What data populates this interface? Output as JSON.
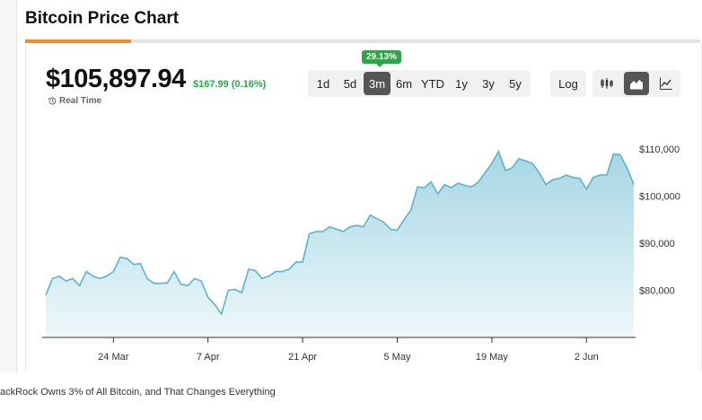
{
  "header": {
    "title": "Bitcoin Price Chart"
  },
  "price": {
    "value": "$105,897.94",
    "change": "$167.99 (0.16%)",
    "realtime_label": "Real Time"
  },
  "toolbar": {
    "ranges": [
      "1d",
      "5d",
      "3m",
      "6m",
      "YTD",
      "1y",
      "3y",
      "5y"
    ],
    "active_range": "3m",
    "performance_badge": "29.13%",
    "log_label": "Log",
    "chart_types": [
      "candlestick-icon",
      "area-icon",
      "line-icon"
    ],
    "active_chart_type": "area-icon"
  },
  "colors": {
    "accent": "#f08c2e",
    "positive": "#2ea64a",
    "line": "#5bb3cc",
    "fill_top": "#a6d6e4",
    "fill_bottom": "#eef8fb"
  },
  "chart_data": {
    "type": "area",
    "x_tick_labels": [
      "24 Mar",
      "7 Apr",
      "21 Apr",
      "5 May",
      "19 May",
      "2 Jun"
    ],
    "x_tick_index": [
      10,
      24,
      38,
      52,
      66,
      80
    ],
    "y_tick_labels": [
      "$80,000",
      "$90,000",
      "$100,000",
      "$110,000"
    ],
    "y_ticks": [
      80000,
      90000,
      100000,
      110000
    ],
    "ylim": [
      70000,
      115000
    ],
    "values": [
      79000,
      82500,
      83000,
      82000,
      82500,
      81000,
      84000,
      83000,
      82500,
      83000,
      84000,
      87000,
      86800,
      85500,
      85700,
      82500,
      81500,
      81500,
      81600,
      84000,
      81300,
      81000,
      82500,
      82000,
      78500,
      77000,
      75000,
      80000,
      80200,
      79500,
      84500,
      84200,
      82500,
      83000,
      84000,
      84000,
      84500,
      86000,
      86000,
      92000,
      92500,
      92500,
      93500,
      93000,
      92500,
      93500,
      93800,
      93500,
      96000,
      95200,
      94500,
      93000,
      92800,
      95000,
      97000,
      102000,
      101800,
      103000,
      100500,
      102500,
      101800,
      102800,
      102300,
      102000,
      103000,
      105000,
      107000,
      109500,
      105500,
      106000,
      108000,
      107500,
      107000,
      105000,
      102500,
      103500,
      103800,
      104500,
      104000,
      103800,
      101500,
      104000,
      104500,
      104500,
      109000,
      108800,
      106000,
      102500
    ]
  },
  "footer": {
    "caption": "ackRock Owns 3% of All Bitcoin, and That Changes Everything"
  }
}
